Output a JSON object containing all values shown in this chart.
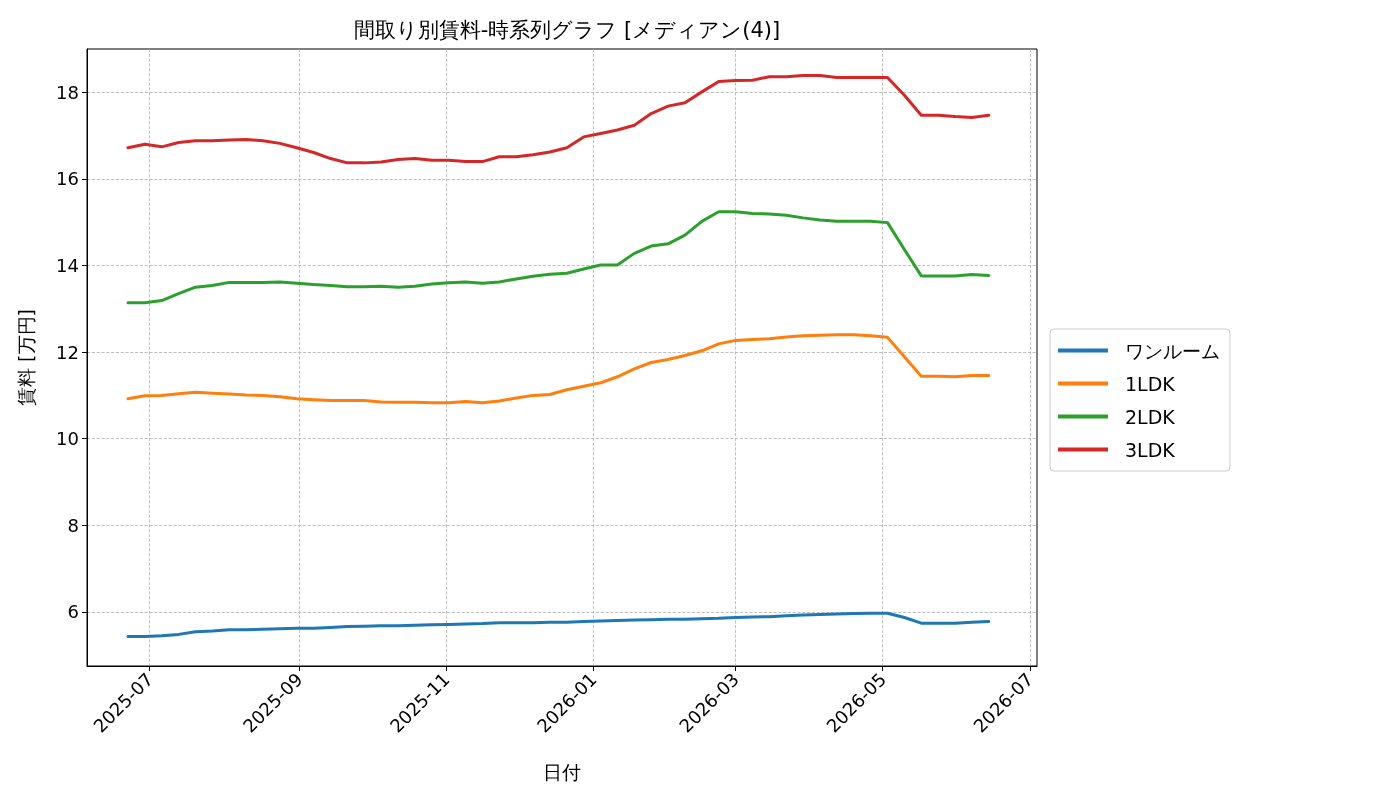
{
  "chart_data": {
    "type": "line",
    "title": "間取り別賃料-時系列グラフ [メディアン(4)]",
    "xlabel": "日付",
    "ylabel": "賃料 [万円]",
    "x": [
      "2025-06-22",
      "2025-06-29",
      "2025-07-06",
      "2025-07-13",
      "2025-07-20",
      "2025-07-27",
      "2025-08-03",
      "2025-08-10",
      "2025-08-17",
      "2025-08-24",
      "2025-08-31",
      "2025-09-07",
      "2025-09-14",
      "2025-09-21",
      "2025-09-28",
      "2025-10-05",
      "2025-10-12",
      "2025-10-19",
      "2025-10-26",
      "2025-11-02",
      "2025-11-09",
      "2025-11-16",
      "2025-11-23",
      "2025-11-30",
      "2025-12-07",
      "2025-12-14",
      "2025-12-21",
      "2025-12-28",
      "2026-01-04",
      "2026-01-11",
      "2026-01-18",
      "2026-01-25",
      "2026-02-01",
      "2026-02-08",
      "2026-02-15",
      "2026-02-22",
      "2026-03-01",
      "2026-03-08",
      "2026-03-15",
      "2026-03-22",
      "2026-03-29",
      "2026-04-05",
      "2026-04-12",
      "2026-04-19",
      "2026-04-26",
      "2026-05-03",
      "2026-05-10",
      "2026-05-17",
      "2026-05-24",
      "2026-05-31",
      "2026-06-07",
      "2026-06-14"
    ],
    "series": [
      {
        "name": "ワンルーム",
        "color": "#1f77b4",
        "values": [
          5.43,
          5.43,
          5.45,
          5.48,
          5.54,
          5.56,
          5.59,
          5.59,
          5.6,
          5.61,
          5.62,
          5.62,
          5.64,
          5.66,
          5.67,
          5.68,
          5.68,
          5.69,
          5.7,
          5.71,
          5.72,
          5.73,
          5.75,
          5.75,
          5.75,
          5.76,
          5.76,
          5.78,
          5.79,
          5.8,
          5.81,
          5.82,
          5.83,
          5.83,
          5.84,
          5.85,
          5.87,
          5.88,
          5.89,
          5.91,
          5.93,
          5.94,
          5.95,
          5.96,
          5.97,
          5.97,
          5.87,
          5.74,
          5.74,
          5.74,
          5.76,
          5.78
        ]
      },
      {
        "name": "1LDK",
        "color": "#ff7f0e",
        "values": [
          10.92,
          10.99,
          11.0,
          11.04,
          11.07,
          11.05,
          11.03,
          11.01,
          11.0,
          10.97,
          10.92,
          10.9,
          10.88,
          10.88,
          10.88,
          10.85,
          10.84,
          10.84,
          10.83,
          10.83,
          10.86,
          10.83,
          10.87,
          10.94,
          11.0,
          11.02,
          11.13,
          11.21,
          11.29,
          11.43,
          11.61,
          11.76,
          11.83,
          11.92,
          12.03,
          12.19,
          12.27,
          12.29,
          12.31,
          12.35,
          12.38,
          12.39,
          12.4,
          12.4,
          12.38,
          12.34,
          11.89,
          11.44,
          11.44,
          11.43,
          11.46,
          11.46
        ]
      },
      {
        "name": "2LDK",
        "color": "#2ca02c",
        "values": [
          13.14,
          13.14,
          13.19,
          13.35,
          13.5,
          13.54,
          13.61,
          13.61,
          13.61,
          13.62,
          13.59,
          13.56,
          13.54,
          13.51,
          13.51,
          13.52,
          13.5,
          13.52,
          13.57,
          13.6,
          13.62,
          13.59,
          13.62,
          13.69,
          13.75,
          13.8,
          13.82,
          13.92,
          14.01,
          14.01,
          14.28,
          14.45,
          14.5,
          14.7,
          15.02,
          15.24,
          15.24,
          15.2,
          15.19,
          15.16,
          15.1,
          15.05,
          15.02,
          15.02,
          15.02,
          14.99,
          14.37,
          13.76,
          13.76,
          13.76,
          13.79,
          13.77
        ]
      },
      {
        "name": "3LDK",
        "color": "#d62728",
        "values": [
          16.72,
          16.8,
          16.74,
          16.84,
          16.88,
          16.88,
          16.9,
          16.91,
          16.88,
          16.82,
          16.72,
          16.61,
          16.47,
          16.37,
          16.37,
          16.39,
          16.45,
          16.47,
          16.43,
          16.43,
          16.4,
          16.4,
          16.51,
          16.51,
          16.56,
          16.62,
          16.72,
          16.97,
          17.05,
          17.13,
          17.24,
          17.51,
          17.68,
          17.76,
          18.01,
          18.25,
          18.27,
          18.28,
          18.36,
          18.36,
          18.39,
          18.39,
          18.34,
          18.34,
          18.34,
          18.34,
          17.93,
          17.47,
          17.47,
          17.44,
          17.42,
          17.47
        ]
      }
    ],
    "xlim": [
      "2025-06-05",
      "2026-07-04"
    ],
    "xticks": [
      "2025-07",
      "2025-09",
      "2025-11",
      "2026-01",
      "2026-03",
      "2026-05",
      "2026-07"
    ],
    "ylim": [
      4.75,
      19.0
    ],
    "yticks": [
      6,
      8,
      10,
      12,
      14,
      16,
      18
    ],
    "grid": true,
    "legend": "right",
    "line_style": "solid",
    "marker": "none"
  }
}
